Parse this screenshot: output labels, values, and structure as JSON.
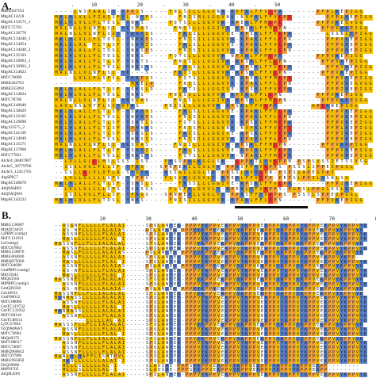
{
  "panel_a": {
    "letter": "A.",
    "ruler": "      .      10       .      20       .      30       .      40       .      50",
    "sequences": [
      {
        "name": "MtBG647101",
        "seq": "----LNSFAALSY-YPPIS-----FNLSILLGGVNK-KVFKLFFVCPR-------PFPLKEPIGG"
      },
      {
        "name": "MtgAC14218",
        "seq": "MKLHLVLLFIAISFYL-NYFS-----FNISMLLGGVNK-NVFKLFFVCPC-------PFPLKEPIGG"
      },
      {
        "name": "MtgAC133575_1",
        "seq": "MKLYLVLLFLTDSL-YNKS-----FQTSLLLGGVVK-RPEKLFFMCPC-------PFPVKEGVGG"
      },
      {
        "name": "MtTC75793",
        "seq": "MALNLLVLNFLSI-YKSMAS-----FNISLLLGGIVK-KPSKLFFMCPN-------PFPVKKPIGG"
      },
      {
        "name": "MtgAC136778",
        "seq": "MALNLLVLNFLSIY-YKKYIS-----FKISLLLGGVVE-KPSKLFFVCPR-------LSSNLYPIGG"
      },
      {
        "name": "MtgAC134448_1",
        "seq": "MKLHLVLLFLTDSL-YNKKPS-----FNISILLGGVVK-KPAKLFFLCPN-------PFPVKEPIGG"
      },
      {
        "name": "MtgAC134954",
        "seq": "MKLHLAL-FLTLSF-YSKYIS-----FHLSLLLGGVVE-KPAKLFFVCPR-------PFPVKEPIGG"
      },
      {
        "name": "MtgAC134448_2",
        "seq": "MKLHLALLFLTDSL-YNKSPS-----FNISILLGGVVK-KPAKLFFLCPN-------PFPVKEPIGG"
      },
      {
        "name": "MtgAC135103",
        "seq": "MKLHLVLLFLTDSL-YNKS-----FQTSLLLGGVVK-NPAKLFFMCPR-------PFPVKEPIGG"
      },
      {
        "name": "MtgAC130963_1",
        "seq": "MKLHLALLFLTLSF-YSKTS-----FNISLLLGGIVK-KPSKLFFLCPN-------PFPVKEPIGG"
      },
      {
        "name": "MtgAC130963_2",
        "seq": "MKLHLVLLFLTDSL-YNKSYS-----FHLSLLLGGVVK-KPSKLFFVCPR-------PFPVKEPIGG"
      },
      {
        "name": "MtgAC134823",
        "seq": "MALNLLVLNFLSI-YK---S-----FKISLLLGGVVK-KPSKLFFVCPN-------PFPVKEPIGG"
      },
      {
        "name": "MtTC76009",
        "seq": "----LVLLFLSFSL-YKKPVS-----FQTSLLLGGVVK-KPSKLFFMCPC-------PFPVKEPIGG"
      },
      {
        "name": "MtBE262763",
        "seq": "----------------MKELP-----FNISLLLGGVVK-KPAKLFFLCPN-------PFPVKEGVGG"
      },
      {
        "name": "MtBE255094",
        "seq": "MKLHLALLFLTLSF-YSKSLD-----FKTSLLLGGIVE-KPSKLFFVCPR-------PFPIKEPIGG"
      },
      {
        "name": "MtgAC134824",
        "seq": "MKLHLVLLFLTDSL-YNKS-----FNISILLGGVVK-KPAKLFFLCPN-------PFPVKEPIGG"
      },
      {
        "name": "MtTC78796",
        "seq": "MALNLLVLNFLSI-YKSVAS-----FNISLLLGGIVK-KPSKLFFMCPN-------PFPVKKPIGG"
      },
      {
        "name": "MtgAC140046",
        "seq": "LAVLNSLVTFLSIYVFKS-----FNISLLLGGVVK-KPSKLFFVCPR-------APCKNEPIGG"
      },
      {
        "name": "MtgAC136829",
        "seq": "MKLHLALLFLTLSF-YSKYVS-----FHLSLLLGGVVE-KPAKLFFVCPR-------PFPVKEPIGG"
      },
      {
        "name": "MtgAC122165",
        "seq": "MKLHLVLLFLTDSL-YNKKPS-----FNISILLGGVVK-KPAKLFFLCPN-------PFPVKEPIGG"
      },
      {
        "name": "MtgAC129090",
        "seq": "MKLHLALLFLTLSF-YSKSLS-----FQTSLLLGGVVK-KPSKLFFMCPR-------PFPVKEPIGG"
      },
      {
        "name": "Mtg123575_2",
        "seq": "MKLHLALLFLTLSF-YPHNKS-----FNISMLLGGVNK-NVFKLFFVCPC-------PFPLKEPIGG"
      },
      {
        "name": "MtgAC141130",
        "seq": "MKLHLALLFLTLSF-YSKSLS-----FKISLLLGGIVE-KPSKLFFVCPR-------PFPIKEPIGG"
      },
      {
        "name": "MtgAC134049",
        "seq": "MKLHLVLLFLTDSL-YNKSIS-----FNISILLGGVVK-KPAKLFFLCPN-------PFPVKEPIGG"
      },
      {
        "name": "MtgAC135571",
        "seq": "MALNLLVLNFLSI-YKSVAS-----FNISLLLGGIVK-KPSKLFFMCPN-------PFPVKKPIGG"
      },
      {
        "name": "MtgAC137060",
        "seq": "MKLHLALLFLTLSF-YSKYIS-----FHLSLLLGGVVE-KPAKLFFVCPR-------PFPVKEPIGG"
      },
      {
        "name": "MtTC77823",
        "seq": "MKLHLVLLFLTDSL-YNKSYS-----FQTSLLLGGVVK-NPAKLFFMCPR-------PFPVKEPIGG"
      },
      {
        "name": "Atchr4_00407007",
        "seq": "--LVLLGLCLMSLSSS-ISS---FHSQPKGKGGLSK--CPPKTLYVCPPN-PSPSVSSIETSSVSG"
      },
      {
        "name": "Atchr5_30779706",
        "seq": "--ISILVGLFLLSF-YFKG---SPNPEKLLGGLVY-PPKSFFYVCPPS-PSSSLSPPEIPGGL"
      },
      {
        "name": "Atchr3_12451765",
        "seq": "--SSLLCLVLVFLA-SYGYK---KSSGLLGGLSK-PPSSLHVKCPN-PSPSGAPEGVPI"
      },
      {
        "name": "AtgSPIC7",
        "seq": "--LVLLGLLLLSFS-YTPPS---FLSVRLGGVLY-RPEKLFFVCPP-PEPSLPPILYSNLSG"
      },
      {
        "name": "MtgAC140670",
        "seq": "MKLHLALLFLTLSF-YSKSLS-----FKSSLLLGGIVE-KPSKLFFVCPR-------PFPIKEPIGG"
      },
      {
        "name": "AtQ9AHK9",
        "seq": "--LVLLGLLLLSFS-YSKSSS---FLSFKLGGVLY-RPEKLYFVCPPS-PGPSLPPILDSLKG"
      },
      {
        "name": "AtQ9AQW0",
        "seq": "--ISILVGLFLLSF-YFKGS---SPNPEKLLGGLVY-PPKSFFYVCPPS-PSSSLSPPEIPGGL"
      },
      {
        "name": "MtgAC142223",
        "seq": "MKLHLVLLFLTDSL-YNKS-----FNISILLGGVVK-KPAKLFFLCPN-------PFPVKEPIGG"
      }
    ],
    "color_classes": {
      "yellow": "#f6c200",
      "blue": "#5a7fc6",
      "red": "#e8332d",
      "orange": "#f2a23c"
    }
  },
  "panel_b": {
    "letter": "B.",
    "ruler": "         .      20       .      30       .      40       .      50       .      60       .      70       .      80",
    "sequences": [
      {
        "name": "MtBG136687",
        "seq": "--ASGNFLLLLLFLALAI-----SPQLANYEK-PPPVYKPPVEKPPVYKPPVEKPPVYKPPVYKPPVEKPPVYKPPVYK"
      },
      {
        "name": "MtAI974459",
        "seq": "--AS-NFLLLLLALAIAS-----PQLANYEK-PPPYYKPPYEKPPVYKPPVEKPPVYKPPVYKPPVEKPPVYKPPVYK"
      },
      {
        "name": "LjPRPCcontig1",
        "seq": "--ASSNFLLLLLFLALAI-----SPQLANYEK-PPPVYKPPVEKPPVYKPPVEKPPVYKPPVYKPPVEKPPVYKPPVYK"
      },
      {
        "name": "MtTC131931",
        "seq": "--MASLLLLLLLFLAL-I-----SPQLANYEK-PPPVYKPPVEKPPVYKPPVEKPPVYKPPVYKPPVEKPPVYKPPVYK"
      },
      {
        "name": "LeContig1",
        "seq": "MASSNFLLFLLIALALAL-----SFQLANYEK-PPVYKPPVEKPPVYKPPVEKPPVYKPPVYKPPVEKPPVYKPPVYK"
      },
      {
        "name": "MtTC67863",
        "seq": "--ASSNFLLLLLFLALAI-----SPQLANYEK-PPPVYKPPVEKPPVYKPPVEKPPVYKPPVYKPPVEKPPVYKPPVYK"
      },
      {
        "name": "MtBG158076",
        "seq": "--MASLFLLLLLALAIAS-----PQLANYEK-PPPYYKPPYEKPPVYKPPVEKPPVYKPPVYKPPVEKPPVYKPPVYK"
      },
      {
        "name": "MtBG604046",
        "seq": "--ASSNFLLLLLFLALAI-----SPQLANYEK-PPPVYKPPVEKPPVYKPPVEKPPVYKPPVYKPPVEKPPVYKPP--"
      },
      {
        "name": "MtBQ079360",
        "seq": "--MASLLLLLLLFLAL-I-----SPQLANYEK-PPPVYKPPVEKPPVYKPPVEKPPVYKPPVYKPPVEKPPVYKPPVYK"
      },
      {
        "name": "MtTC64690",
        "seq": "--ASSNFLLLLLALAIAS-----PQLANYEK-PPPYYKPPYEKPPVYKPPVEKPPVYKPPVYKPPVEKPPVYKPPVYK"
      },
      {
        "name": "GmPRPCcontig1",
        "seq": "--AS-NFLLLLLFLALAI-----SPQLANYEK-PPPVYKPPVEKPPVYKPPVEKPPVYKPPVYKPPVEKPPVYKPPVYK"
      },
      {
        "name": "Mt015643",
        "seq": "--MASLLLLLLLFLAL-I-----SPQLANYEK-PPPVYKPPVEKPPVYKPPVEKPPVYKPPVYKPPVEKPPVYKPPVYK"
      },
      {
        "name": "MtQ43564",
        "seq": "MASSNFLLFLLIALALAL-----SFQLANYEK-PPVYKPPVEKPPVYKPPVEKPPVYKPPVYKPPVEKPPVYKPPVYK"
      },
      {
        "name": "MtPRPCcontig3",
        "seq": "--ASSNFLLLLLFLALAI-----SPQLANYEK-PPPVYKPPVEKPPVYKPPVEKPPVYKPPVYKPPVEKPPVYKPPVYK"
      },
      {
        "name": "GmQ39358",
        "seq": "--AS-NFLLLLLALAIAS-----PQLANYEK-PPPYYKPPYEKPPVYKPPVEKPPVYKPPVYKPPVEKPPVYKPPVYK"
      },
      {
        "name": "Gm10913",
        "seq": "MASSNFLLFLLIALALAL-----SFQLANYEK-PPVYKPPVEKPPVYKPPVEKPPVYKPPVYKPPVEKPPVYKPPVYK"
      },
      {
        "name": "GmF08012",
        "seq": "MRNMASSLLLLLALALAI-----SPQLANYEK-PPPVYKPPVEKPPVYKPPVEKPPVYKPPVYKPPVEKPPVYKPPVYK"
      },
      {
        "name": "MtTC68066",
        "seq": "--ASSNFLLLLLFLALAI-----SPQLANYEK-PPPVYKPPVEKPPVYKPPVEKPPVYKPPVYKPPVEKPPVYKPPVYK"
      },
      {
        "name": "GmTC119732",
        "seq": "--MASLLLLLLLFLAL-I-----SPQLANYEK-PPPVYKPPVEKPPVYKPPVEKPPVYKPPVYKPPVEKPPVYKPPVYK"
      },
      {
        "name": "GmTC131932",
        "seq": "MRNMASSLLLLLALALAI-----SPQLANYEK-PPPVYKPPVEKPPVYKPPVEKPPVYKPPVYKPPVEKPPVYKPPVYK"
      },
      {
        "name": "MtTC68116",
        "seq": "--ASSNFLLLLLFLALAI-----SPQLANYEK-PPPVYKPPVEKPPVYKPPVEKPPVYKPPVYKPPVEKPPVYKPPVYK"
      },
      {
        "name": "GmTC88111",
        "seq": "--------LLLLLAL-AI-----SPQLANYEK-PPPVYKPPVEKPPVYKPPVEKPPVYKPPVYKPPVEKPPVYKPPVYK"
      },
      {
        "name": "LjTC57664",
        "seq": "MASSSFLLFLLIALALAL-----SFQLANYEK-PPVYKPPVEKPPVYKPPVEKPPVYKPPVYKPPVEKPPVYKPPVYK"
      },
      {
        "name": "TcQ9MAW3",
        "seq": "--ASSNFLLLLLFLALAI-----SPQLANYEK-PPPVYKPPVEKPPVYKPPVEKPPVYKPPVYKPPVEKPPVYKPPVYK"
      },
      {
        "name": "MtTC76961",
        "seq": "--MASLLLLLLLFLAL-I-----SPQLANYEK-PPPVYKPPVEKPPVYKPPVEKPPVYKPPVYKPPVEKPPVYKPPVYK"
      },
      {
        "name": "MtQ40375",
        "seq": "MASSNFLLFLLIALALAL-----SFQLANYEK-PPVYKPPVEKPPVYKPPVEKPPVYKPPVYKPPVEKPPVYKPPVYK"
      },
      {
        "name": "MtTC68017",
        "seq": "--ASSNFLLLLLFLALAI-----SPQLANYEK-PPPVYKPPVEKPPVYKPPVEKPPVYKPPVYKPPVEKPPVYKPPVYK"
      },
      {
        "name": "MtTC74007",
        "seq": "--ASSNFLLLLLFLALAI-----SPQLANYEK-PPPVYKPPVEKPPVYKPPVEKPPVYKPPVYKPPVEKPPVYKPPVYK"
      },
      {
        "name": "MtBQ966612",
        "seq": "--ASSNFLLLLLFLALAI-----SPQLANYEK-PPPVYKPPVEKPPVYKPPVEKPPVYKPPVYKPPVEKPPVYKPPVYK"
      },
      {
        "name": "MtTC67906",
        "seq": "MANLHLHAFFLISMTPVL-----SPQLANYEK-PPPVYKPPVEKPPVYKPPVEKPPVYKPPVYKPPVEKPPVYKPPVYK"
      },
      {
        "name": "MtBG965850",
        "seq": "--MRQLLLLLLLALAI-I-----SPQLANYEK-PPPVYKPPVEKPPVYKPPVEKPPVYKPPVYKPPVEKPPVYKPPVYK"
      },
      {
        "name": "DcQ39686",
        "seq": "--MLLLSLLLLLAL-I-------SLADSHE-PPPSYKPPVEKPPVYKPPVEKPPVYKPPVYKPPVEKPP--------"
      },
      {
        "name": "MtP93705",
        "seq": "--MLLLSLLLLLAL-I-------SLADSHE-PPPSYKPPVEKPPVYKPPVEKPPVYKPPVYKPPVEKPP--------"
      },
      {
        "name": "AtQ9LEF8",
        "seq": "--ASSNFLLLLLFLALAI-----SPQLANYEK-PPPVYKPPVEKPPVYKPPVEKPPVYKPPVYKPPVEKPPVYKPPVYK"
      }
    ]
  }
}
